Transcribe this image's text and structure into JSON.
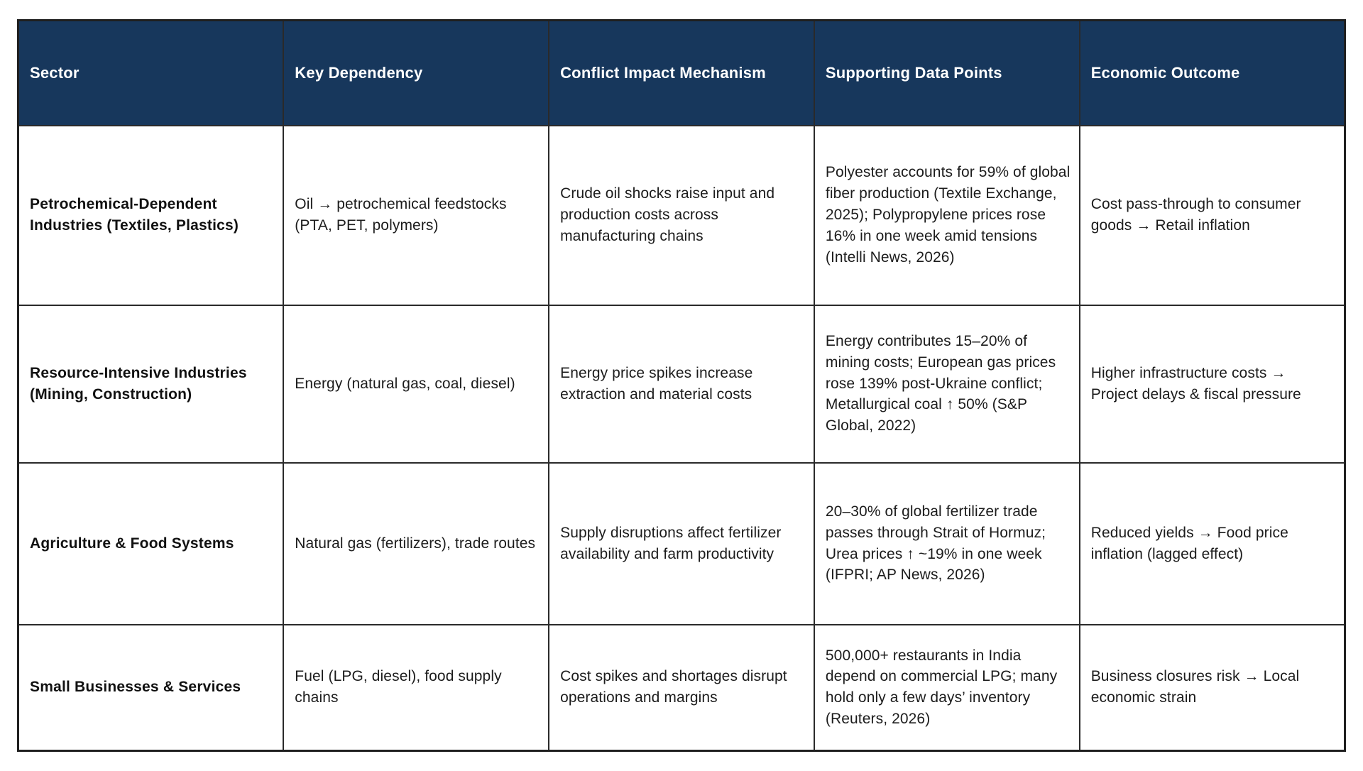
{
  "table": {
    "columns": [
      "Sector",
      "Key Dependency",
      "Conflict Impact Mechanism",
      "Supporting Data Points",
      "Economic Outcome"
    ],
    "rows": [
      {
        "sector": "Petrochemical-Dependent Industries (Textiles, Plastics)",
        "key_dependency": "Oil → petrochemical feedstocks (PTA, PET, polymers)",
        "mechanism": "Crude oil shocks raise input and production costs across manufacturing chains",
        "data_points": "Polyester accounts for 59% of global fiber production (Textile Exchange, 2025); Polypropylene prices rose 16% in one week amid tensions (Intelli News, 2026)",
        "outcome": "Cost pass-through to consumer goods → Retail inflation"
      },
      {
        "sector": "Resource-Intensive Industries (Mining, Construction)",
        "key_dependency": "Energy (natural gas, coal, diesel)",
        "mechanism": "Energy price spikes increase extraction and material costs",
        "data_points": "Energy contributes 15–20% of mining costs; European gas prices rose 139% post-Ukraine conflict; Metallurgical coal ↑ 50% (S&P Global, 2022)",
        "outcome": "Higher infrastructure costs → Project delays & fiscal pressure"
      },
      {
        "sector": "Agriculture & Food Systems",
        "key_dependency": "Natural gas (fertilizers), trade routes",
        "mechanism": "Supply disruptions affect fertilizer availability and farm productivity",
        "data_points": "20–30% of global fertilizer trade passes through Strait of Hormuz; Urea prices ↑ ~19% in one week (IFPRI; AP News, 2026)",
        "outcome": "Reduced yields → Food price inflation (lagged effect)"
      },
      {
        "sector": "Small Businesses & Services",
        "key_dependency": "Fuel (LPG, diesel), food supply chains",
        "mechanism": "Cost spikes and shortages disrupt operations and margins",
        "data_points": "500,000+ restaurants in India depend on commercial LPG; many hold only a few days’ inventory (Reuters, 2026)",
        "outcome": "Business closures risk → Local economic strain"
      }
    ],
    "colors": {
      "header_bg": "#17375C",
      "header_text": "#FFFFFF",
      "body_text": "#1C1C1C",
      "border": "#2A2A2A",
      "outer_border": "#1F1F1F",
      "background": "#FFFFFF"
    }
  }
}
